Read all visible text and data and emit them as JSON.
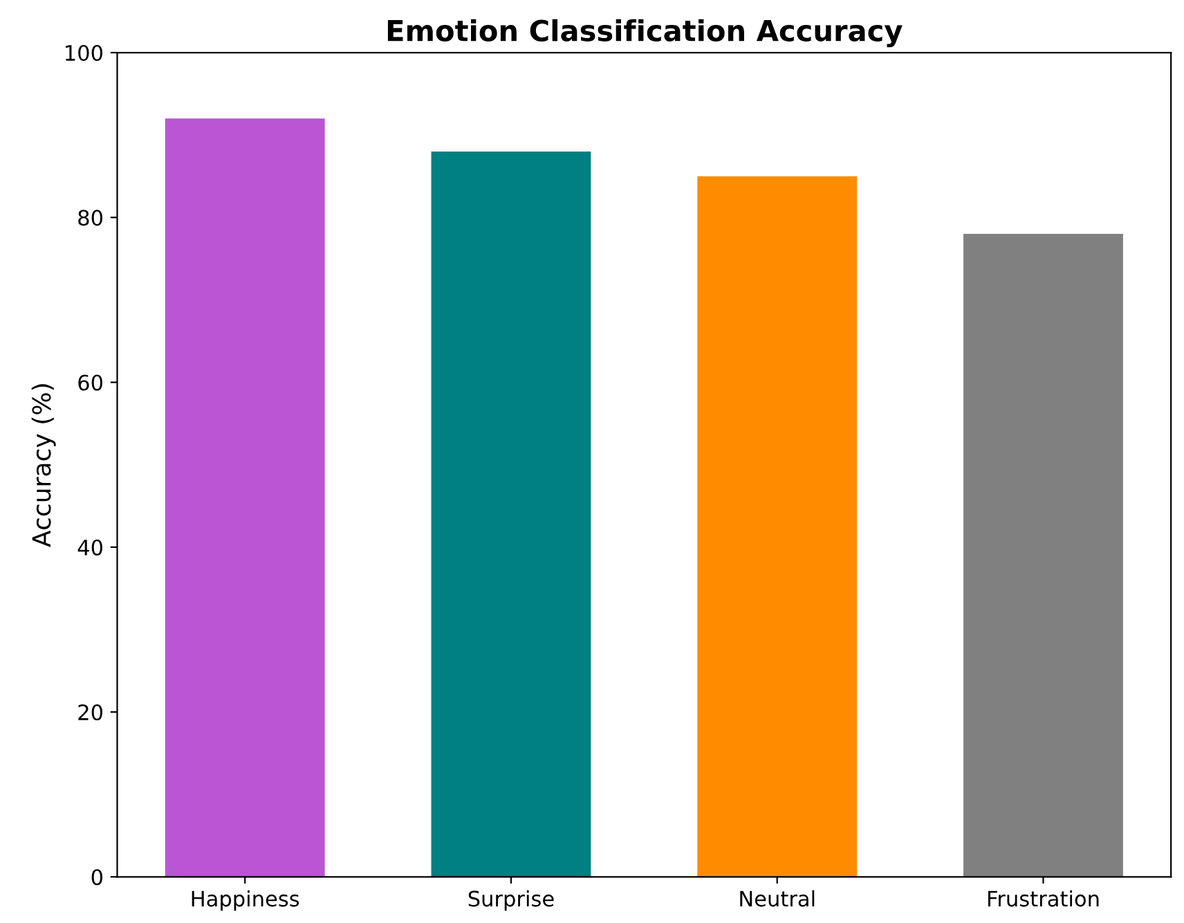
{
  "chart_data": {
    "type": "bar",
    "title": "Emotion Classification Accuracy",
    "ylabel": "Accuracy (%)",
    "categories": [
      "Happiness",
      "Surprise",
      "Neutral",
      "Frustration"
    ],
    "values": [
      92,
      88,
      85,
      78
    ],
    "colors": [
      "#ba55d3",
      "#008080",
      "#ff8c00",
      "#808080"
    ],
    "ylim": [
      0,
      100
    ],
    "yticks": [
      0,
      20,
      40,
      60,
      80,
      100
    ],
    "grid": false
  }
}
